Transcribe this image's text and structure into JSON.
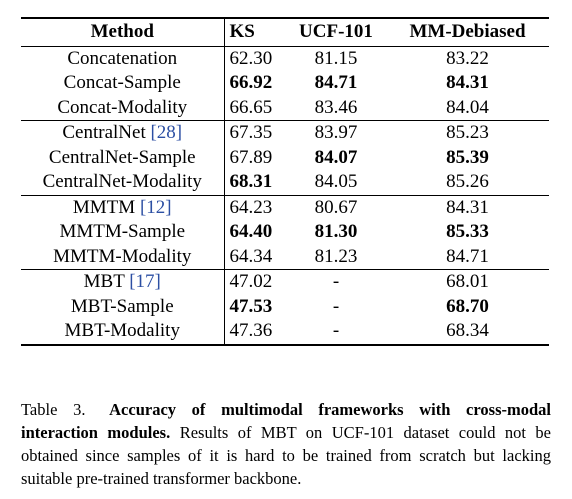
{
  "headers": {
    "method": "Method",
    "ks": "KS",
    "ucf": "UCF-101",
    "mm": "MM-Debiased"
  },
  "groups": [
    {
      "rows": [
        {
          "method": "Concatenation",
          "ref": "",
          "ks": "62.30",
          "ucf": "81.15",
          "mm": "83.22",
          "bold": []
        },
        {
          "method": "Concat-Sample",
          "ref": "",
          "ks": "66.92",
          "ucf": "84.71",
          "mm": "84.31",
          "bold": [
            "ks",
            "ucf",
            "mm"
          ]
        },
        {
          "method": "Concat-Modality",
          "ref": "",
          "ks": "66.65",
          "ucf": "83.46",
          "mm": "84.04",
          "bold": []
        }
      ]
    },
    {
      "rows": [
        {
          "method": "CentralNet",
          "ref": "[28]",
          "ks": "67.35",
          "ucf": "83.97",
          "mm": "85.23",
          "bold": []
        },
        {
          "method": "CentralNet-Sample",
          "ref": "",
          "ks": "67.89",
          "ucf": "84.07",
          "mm": "85.39",
          "bold": [
            "ucf",
            "mm"
          ]
        },
        {
          "method": "CentralNet-Modality",
          "ref": "",
          "ks": "68.31",
          "ucf": "84.05",
          "mm": "85.26",
          "bold": [
            "ks"
          ]
        }
      ]
    },
    {
      "rows": [
        {
          "method": "MMTM",
          "ref": "[12]",
          "ks": "64.23",
          "ucf": "80.67",
          "mm": "84.31",
          "bold": []
        },
        {
          "method": "MMTM-Sample",
          "ref": "",
          "ks": "64.40",
          "ucf": "81.30",
          "mm": "85.33",
          "bold": [
            "ks",
            "ucf",
            "mm"
          ]
        },
        {
          "method": "MMTM-Modality",
          "ref": "",
          "ks": "64.34",
          "ucf": "81.23",
          "mm": "84.71",
          "bold": []
        }
      ]
    },
    {
      "rows": [
        {
          "method": "MBT",
          "ref": "[17]",
          "ks": "47.02",
          "ucf": "-",
          "mm": "68.01",
          "bold": []
        },
        {
          "method": "MBT-Sample",
          "ref": "",
          "ks": "47.53",
          "ucf": "-",
          "mm": "68.70",
          "bold": [
            "ks",
            "mm"
          ]
        },
        {
          "method": "MBT-Modality",
          "ref": "",
          "ks": "47.36",
          "ucf": "-",
          "mm": "68.34",
          "bold": []
        }
      ]
    }
  ],
  "caption": {
    "label": "Table 3.",
    "bold_text": "Accuracy of multimodal frameworks with cross-modal interaction modules.",
    "text": "Results of MBT on UCF-101 dataset could not be obtained since samples of it is hard to be trained from scratch but lacking suitable pre-trained transformer backbone."
  }
}
